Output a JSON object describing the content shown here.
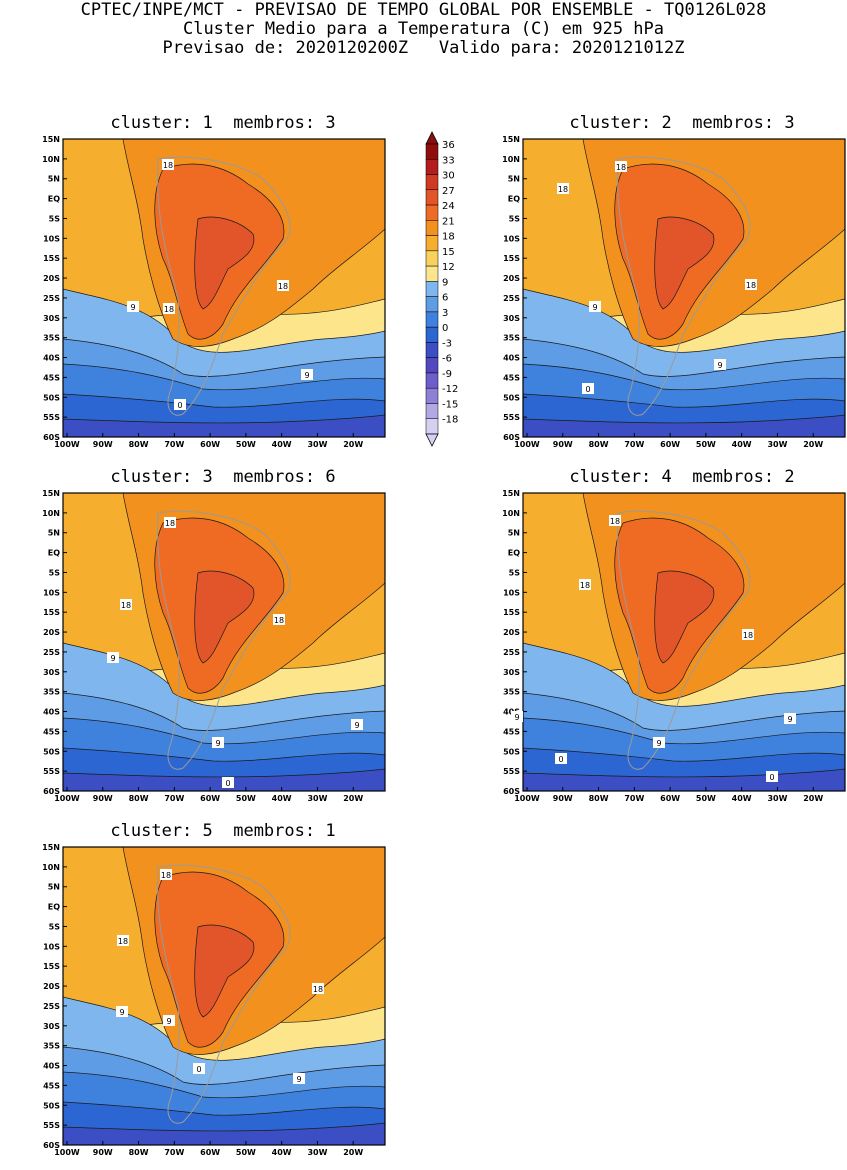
{
  "header": {
    "line1": "CPTEC/INPE/MCT - PREVISAO DE TEMPO GLOBAL POR ENSEMBLE - TQ0126L028",
    "line2": "Cluster Medio para a Temperatura (C) em 925 hPa",
    "line3": "Previsao de: 2020120200Z   Valido para: 2020121012Z"
  },
  "panels": [
    {
      "title": "cluster: 1  membros: 3"
    },
    {
      "title": "cluster: 2  membros: 3"
    },
    {
      "title": "cluster: 3  membros: 6"
    },
    {
      "title": "cluster: 4  membros: 2"
    },
    {
      "title": "cluster: 5  membros: 1"
    }
  ],
  "axes": {
    "lat_labels": [
      "15N",
      "10N",
      "5N",
      "EQ",
      "5S",
      "10S",
      "15S",
      "20S",
      "25S",
      "30S",
      "35S",
      "40S",
      "45S",
      "50S",
      "55S",
      "60S"
    ],
    "lon_labels": [
      "100W",
      "90W",
      "80W",
      "70W",
      "60W",
      "50W",
      "40W",
      "30W",
      "20W"
    ]
  },
  "colorbar": {
    "labels": [
      "36",
      "33",
      "30",
      "27",
      "24",
      "21",
      "18",
      "15",
      "12",
      "9",
      "6",
      "3",
      "0",
      "-3",
      "-6",
      "-9",
      "-12",
      "-15",
      "-18"
    ],
    "colors": [
      "#8f0d0d",
      "#b31d1d",
      "#cf3a23",
      "#e2552a",
      "#ef6a22",
      "#f3911f",
      "#f6ae2e",
      "#fbd15e",
      "#fde58c",
      "#7fb6ee",
      "#5e9ce6",
      "#3f82de",
      "#2c66d2",
      "#3b4ec4",
      "#5248c0",
      "#6c5fc9",
      "#8f80d6",
      "#b3a8e4",
      "#d8d0f2"
    ]
  },
  "contour_labels": {
    "p1": [
      "18",
      "18",
      "18",
      "9",
      "9",
      "0"
    ],
    "p2": [
      "18",
      "18",
      "18",
      "9",
      "9",
      "0"
    ],
    "p3": [
      "18",
      "18",
      "18",
      "9",
      "9",
      "9",
      "0"
    ],
    "p4": [
      "18",
      "18",
      "18",
      "9",
      "9",
      "9",
      "0",
      "0"
    ],
    "p5": [
      "18",
      "18",
      "18",
      "9",
      "9",
      "9",
      "0"
    ]
  }
}
